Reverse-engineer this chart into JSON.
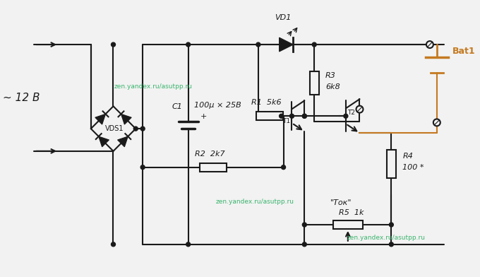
{
  "bg_color": "#f2f2f2",
  "line_color": "#1a1a1a",
  "wm_color": "#27ae60",
  "bat_color": "#c47a20",
  "labels": {
    "VDS1": "VDS1",
    "C1": "C1",
    "C1_val": "100μ × 25B",
    "R1": "R1  5k6",
    "R2": "R2  2k7",
    "R3": "R3",
    "R3_val": "6k8",
    "R4": "R4",
    "R4_val": "100 *",
    "R5": "R5  1k",
    "VD1": "VD1",
    "T1": "T1",
    "T2": "T2",
    "Bat1": "Bat1",
    "tok": "\"Ток\"",
    "voltage": "~ 12 В"
  },
  "wm1": "zen.yandex.ru/asutpp.ru",
  "wm2": "zen.yandex.ru/asutpp.ru",
  "wm3": "zen.yandex.ru/asutpp.ru"
}
